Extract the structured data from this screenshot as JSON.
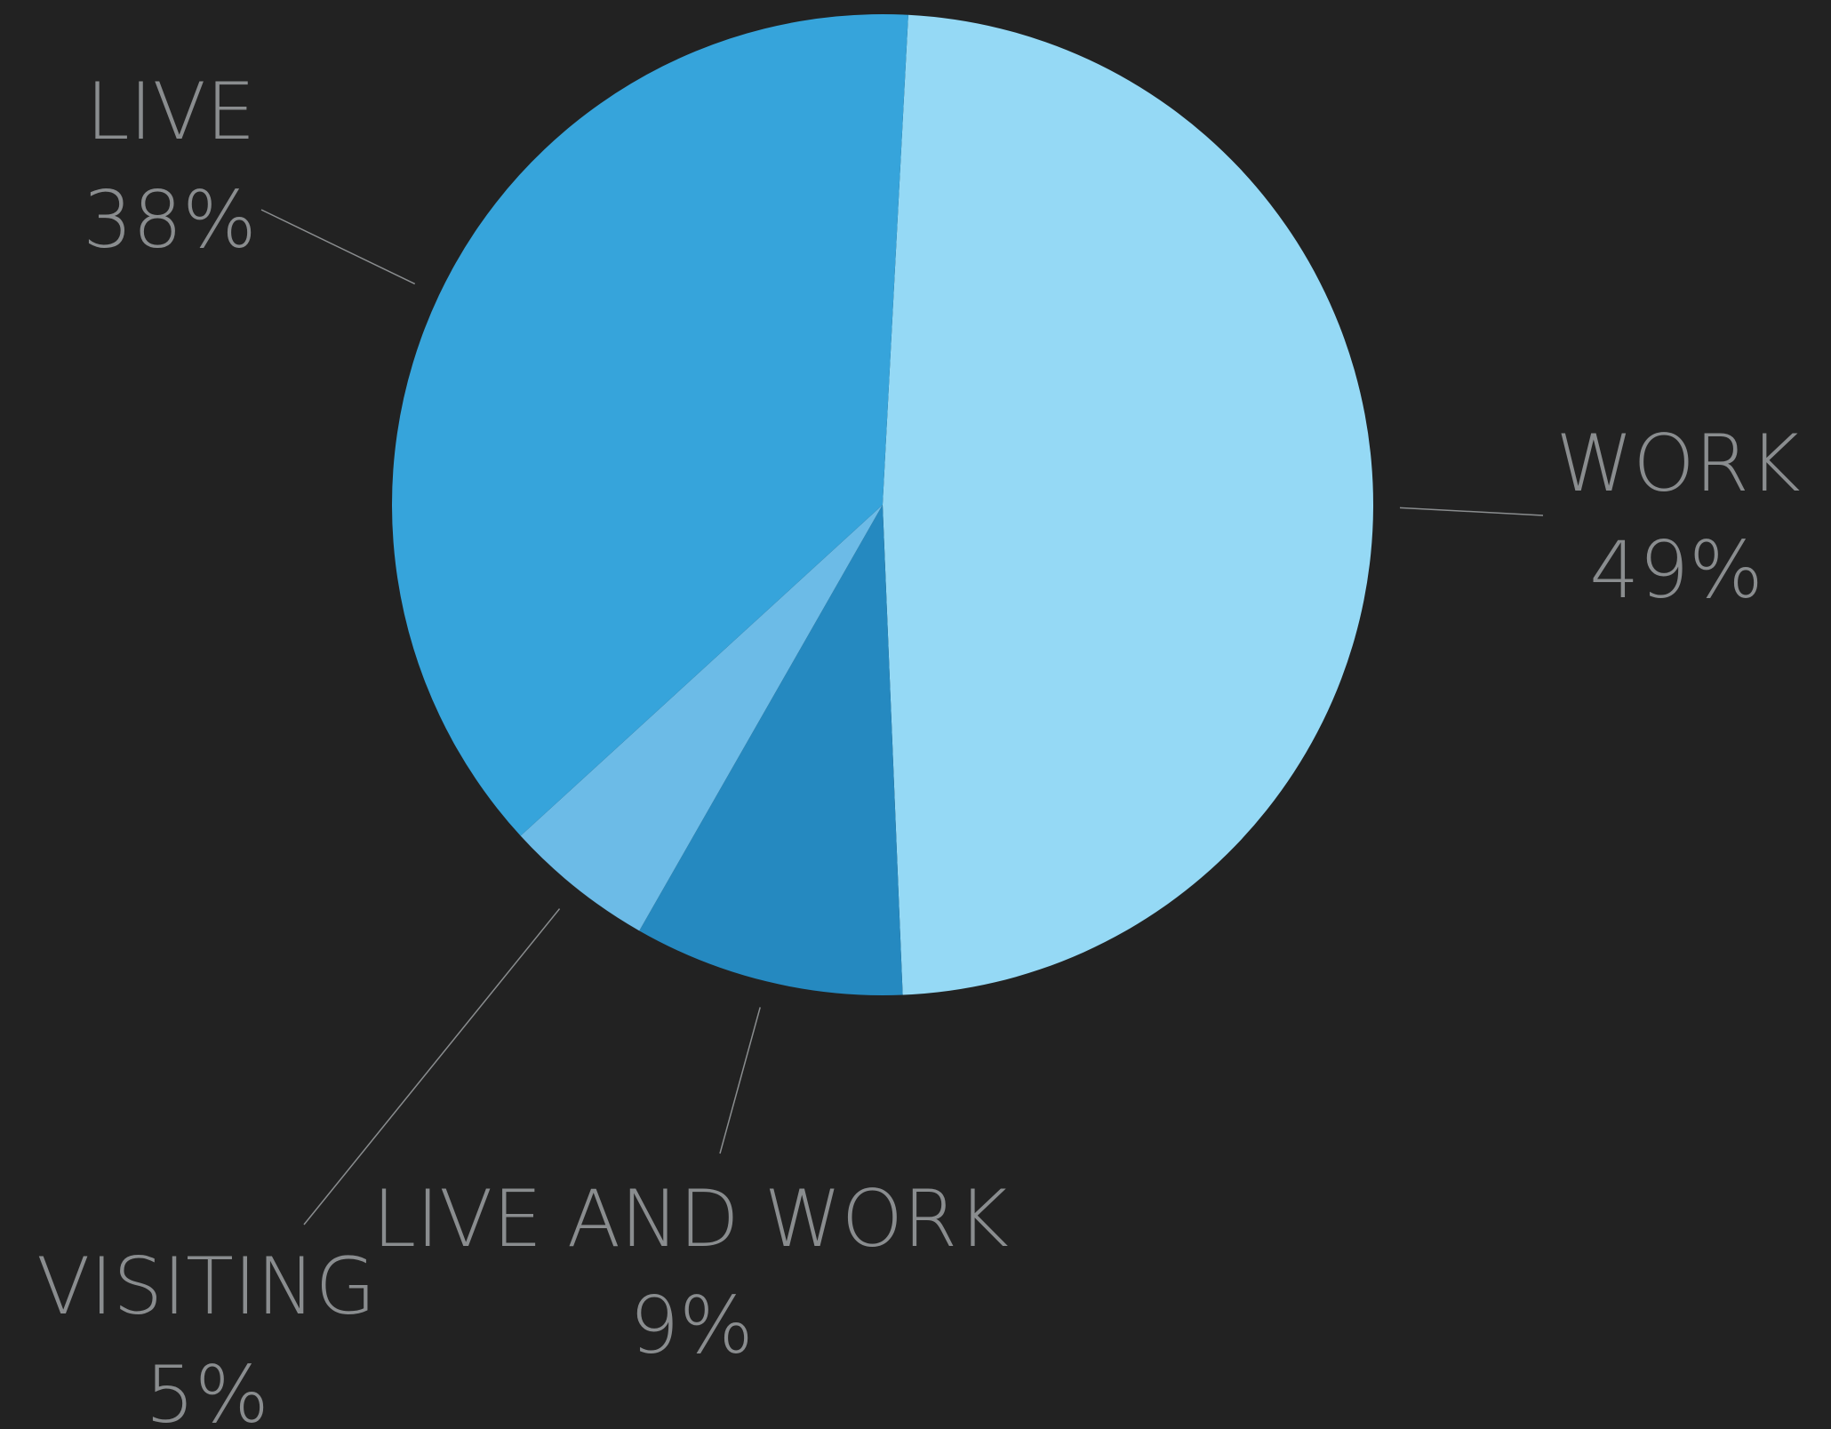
{
  "chart_data": {
    "type": "pie",
    "slices": [
      {
        "name": "WORK",
        "value": 49,
        "label": "49%",
        "color": "#95d9f5"
      },
      {
        "name": "LIVE AND WORK",
        "value": 9,
        "label": "9%",
        "color": "#2589c0"
      },
      {
        "name": "VISITING",
        "value": 5,
        "label": "5%",
        "color": "#6cbbe7"
      },
      {
        "name": "LIVE",
        "value": 38,
        "label": "38%",
        "color": "#36a4db"
      }
    ],
    "background": "#222222",
    "label_color": "#8a8d8f"
  }
}
